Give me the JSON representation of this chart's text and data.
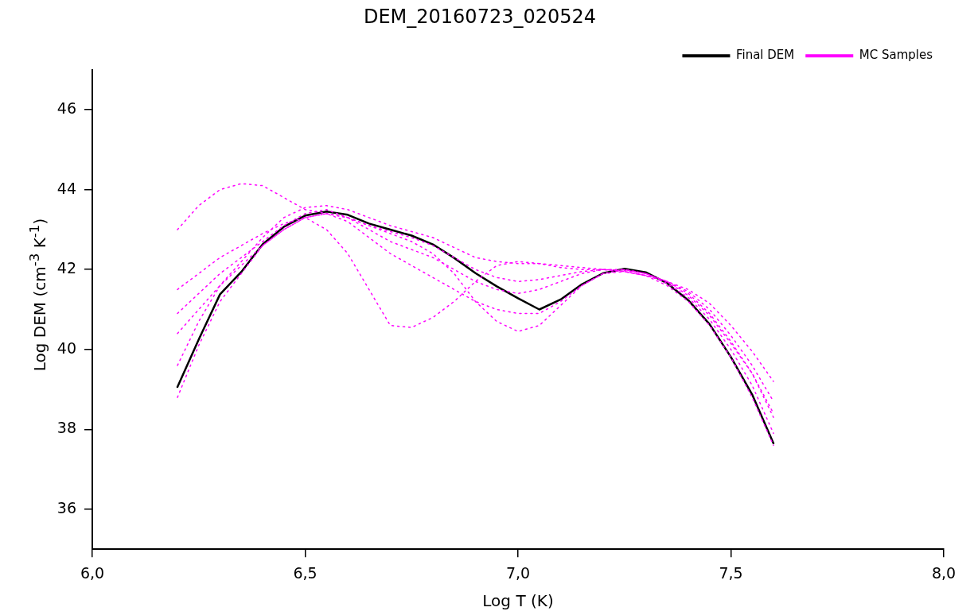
{
  "chart_data": {
    "type": "line",
    "title": "DEM_20160723_020524",
    "xlabel": "Log T (K)",
    "ylabel": "Log DEM (cm$^{-3}$ K$^{-1}$)",
    "x": [
      6.2,
      6.25,
      6.3,
      6.35,
      6.4,
      6.45,
      6.5,
      6.55,
      6.6,
      6.65,
      6.7,
      6.75,
      6.8,
      6.85,
      6.9,
      6.95,
      7.0,
      7.05,
      7.1,
      7.15,
      7.2,
      7.25,
      7.3,
      7.35,
      7.4,
      7.45,
      7.5,
      7.55,
      7.6
    ],
    "xlim": [
      6,
      8
    ],
    "xticks": [
      {
        "value": 6,
        "label": "6,0"
      },
      {
        "value": 6.5,
        "label": "6,5"
      },
      {
        "value": 7,
        "label": "7,0"
      },
      {
        "value": 7.5,
        "label": "7,5"
      },
      {
        "value": 8,
        "label": "8,0"
      }
    ],
    "ylim": [
      35,
      47
    ],
    "yticks": [
      36,
      38,
      40,
      42,
      44,
      46
    ],
    "grid": false,
    "legend": "top right",
    "marker": "none",
    "series": [
      {
        "name": "MC Samples",
        "color": "#ff00ff",
        "line_style": "dotted",
        "values": [
          43.0,
          43.6,
          44.0,
          44.15,
          44.1,
          43.8,
          43.5,
          43.4,
          43.3,
          43.1,
          42.95,
          42.8,
          42.6,
          42.3,
          42.0,
          41.8,
          41.7,
          41.75,
          41.85,
          41.95,
          42.0,
          41.98,
          41.9,
          41.7,
          41.35,
          40.85,
          40.15,
          39.4,
          38.4
        ]
      },
      {
        "color": "#ff00ff",
        "line_style": "dotted",
        "values": [
          41.5,
          41.9,
          42.3,
          42.6,
          42.9,
          43.15,
          43.3,
          43.0,
          42.4,
          41.5,
          40.6,
          40.55,
          40.8,
          41.2,
          41.7,
          42.1,
          42.2,
          42.15,
          42.05,
          42.0,
          42.0,
          41.95,
          41.85,
          41.7,
          41.45,
          41.0,
          40.35,
          39.6,
          38.7
        ]
      },
      {
        "color": "#ff00ff",
        "line_style": "dotted",
        "values": [
          40.4,
          41.0,
          41.6,
          42.1,
          42.6,
          43.0,
          43.3,
          43.4,
          43.3,
          43.1,
          42.9,
          42.7,
          42.4,
          41.9,
          41.2,
          40.7,
          40.45,
          40.6,
          41.1,
          41.6,
          41.9,
          42.0,
          41.9,
          41.65,
          41.3,
          40.75,
          40.0,
          39.1,
          37.9
        ]
      },
      {
        "color": "#ff00ff",
        "line_style": "dotted",
        "values": [
          39.6,
          40.7,
          41.6,
          42.2,
          42.8,
          43.3,
          43.55,
          43.6,
          43.5,
          43.3,
          43.1,
          42.95,
          42.8,
          42.55,
          42.3,
          42.2,
          42.15,
          42.15,
          42.1,
          42.05,
          42.0,
          41.95,
          41.85,
          41.7,
          41.5,
          41.15,
          40.6,
          39.95,
          39.2
        ]
      },
      {
        "color": "#ff00ff",
        "line_style": "dotted",
        "values": [
          38.8,
          40.1,
          41.2,
          41.9,
          42.6,
          43.0,
          43.3,
          43.4,
          43.2,
          42.8,
          42.4,
          42.1,
          41.8,
          41.5,
          41.2,
          41.0,
          40.9,
          40.9,
          41.2,
          41.6,
          41.9,
          41.95,
          41.85,
          41.6,
          41.2,
          40.6,
          39.8,
          38.8,
          37.6
        ]
      },
      {
        "color": "#ff00ff",
        "line_style": "dotted",
        "values": [
          40.9,
          41.4,
          41.9,
          42.3,
          42.7,
          43.1,
          43.4,
          43.5,
          43.3,
          43.0,
          42.7,
          42.5,
          42.3,
          42.0,
          41.7,
          41.5,
          41.4,
          41.5,
          41.7,
          41.9,
          42.0,
          42.0,
          41.9,
          41.7,
          41.4,
          40.9,
          40.2,
          39.4,
          38.3
        ]
      },
      {
        "name": "Final DEM",
        "color": "#000000",
        "line_style": "solid",
        "values": [
          39.06,
          40.25,
          41.38,
          41.94,
          42.63,
          43.07,
          43.35,
          43.45,
          43.37,
          43.15,
          43.0,
          42.85,
          42.63,
          42.29,
          41.91,
          41.58,
          41.28,
          41.0,
          41.25,
          41.63,
          41.91,
          42.02,
          41.93,
          41.66,
          41.23,
          40.63,
          39.81,
          38.87,
          37.65
        ]
      }
    ]
  }
}
